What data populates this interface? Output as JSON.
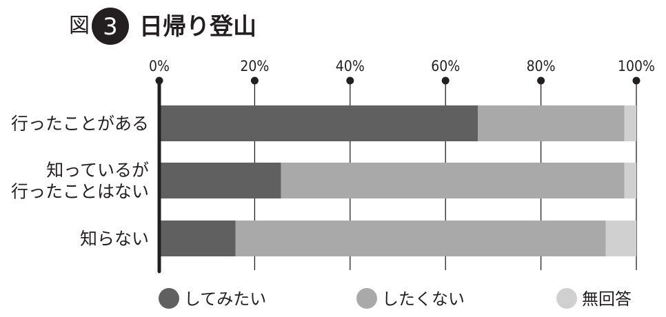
{
  "figure": {
    "prefix": "図",
    "number": "3",
    "title": "日帰り登山"
  },
  "chart_data": {
    "type": "bar",
    "orientation": "horizontal",
    "stacked": true,
    "categories": [
      [
        "行ったことがある"
      ],
      [
        "知っているが",
        "行ったことはない"
      ],
      [
        "知らない"
      ]
    ],
    "series": [
      {
        "name": "してみたい",
        "values": [
          66.8,
          25.5,
          16.0
        ],
        "color": "#616061"
      },
      {
        "name": "したくない",
        "values": [
          30.7,
          72.0,
          77.6
        ],
        "color": "#a9a9a9"
      },
      {
        "name": "無回答",
        "values": [
          2.5,
          2.5,
          6.4
        ],
        "color": "#d0d0d0"
      }
    ],
    "x_ticks": [
      "0%",
      "20%",
      "40%",
      "60%",
      "80%",
      "100%"
    ],
    "x_tick_values": [
      0,
      20,
      40,
      60,
      80,
      100
    ],
    "xlim": [
      0,
      100
    ],
    "grid": true,
    "legend_position": "bottom",
    "colors": {
      "axis": "#231f20",
      "grid": "#231f20",
      "text": "#231f20"
    }
  }
}
